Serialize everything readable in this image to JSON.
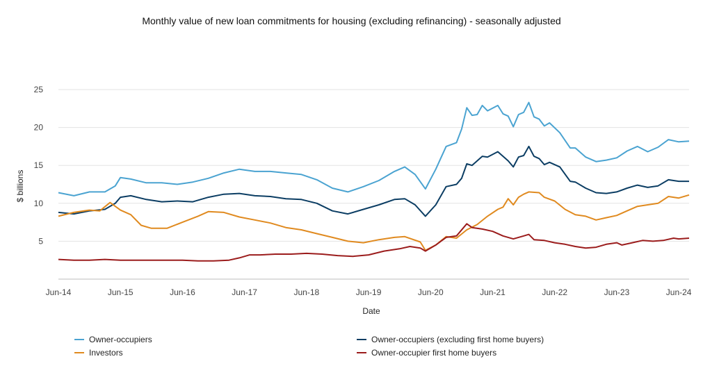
{
  "chart_data": {
    "type": "line",
    "title": "Monthly value of new loan commitments for housing (excluding refinancing) - seasonally adjusted",
    "xlabel": "Date",
    "ylabel": "$ billions",
    "ylim": [
      0,
      25
    ],
    "yticks": [
      5,
      10,
      15,
      20,
      25
    ],
    "x_ticks": [
      "Jun-14",
      "Jun-15",
      "Jun-16",
      "Jun-17",
      "Jun-18",
      "Jun-19",
      "Jun-20",
      "Jun-21",
      "Jun-22",
      "Jun-23",
      "Jun-24"
    ],
    "x_start": "2014-06",
    "x_end": "2024-08",
    "grid": "horizontal",
    "legend_position": "bottom",
    "series": [
      {
        "name": "Owner-occupiers",
        "color": "#4aa3d1",
        "points": [
          [
            "2014-06",
            11.4
          ],
          [
            "2014-09",
            11.0
          ],
          [
            "2014-12",
            11.5
          ],
          [
            "2015-03",
            11.5
          ],
          [
            "2015-05",
            12.3
          ],
          [
            "2015-06",
            13.4
          ],
          [
            "2015-08",
            13.2
          ],
          [
            "2015-11",
            12.7
          ],
          [
            "2016-02",
            12.7
          ],
          [
            "2016-05",
            12.5
          ],
          [
            "2016-08",
            12.8
          ],
          [
            "2016-11",
            13.3
          ],
          [
            "2017-02",
            14.0
          ],
          [
            "2017-05",
            14.5
          ],
          [
            "2017-08",
            14.2
          ],
          [
            "2017-11",
            14.2
          ],
          [
            "2018-02",
            14.0
          ],
          [
            "2018-05",
            13.8
          ],
          [
            "2018-08",
            13.1
          ],
          [
            "2018-11",
            12.0
          ],
          [
            "2019-02",
            11.5
          ],
          [
            "2019-05",
            12.2
          ],
          [
            "2019-08",
            13.0
          ],
          [
            "2019-11",
            14.2
          ],
          [
            "2020-01",
            14.8
          ],
          [
            "2020-03",
            13.8
          ],
          [
            "2020-05",
            11.9
          ],
          [
            "2020-07",
            14.5
          ],
          [
            "2020-09",
            17.5
          ],
          [
            "2020-11",
            18.0
          ],
          [
            "2020-12",
            19.8
          ],
          [
            "2021-01",
            22.6
          ],
          [
            "2021-02",
            21.6
          ],
          [
            "2021-03",
            21.7
          ],
          [
            "2021-04",
            22.9
          ],
          [
            "2021-05",
            22.2
          ],
          [
            "2021-07",
            22.9
          ],
          [
            "2021-08",
            21.8
          ],
          [
            "2021-09",
            21.5
          ],
          [
            "2021-10",
            20.1
          ],
          [
            "2021-11",
            21.7
          ],
          [
            "2021-12",
            22.0
          ],
          [
            "2022-01",
            23.3
          ],
          [
            "2022-02",
            21.4
          ],
          [
            "2022-03",
            21.1
          ],
          [
            "2022-04",
            20.2
          ],
          [
            "2022-05",
            20.6
          ],
          [
            "2022-07",
            19.3
          ],
          [
            "2022-09",
            17.3
          ],
          [
            "2022-10",
            17.3
          ],
          [
            "2022-12",
            16.1
          ],
          [
            "2023-02",
            15.5
          ],
          [
            "2023-04",
            15.7
          ],
          [
            "2023-06",
            16.0
          ],
          [
            "2023-08",
            16.9
          ],
          [
            "2023-10",
            17.5
          ],
          [
            "2023-12",
            16.8
          ],
          [
            "2024-02",
            17.4
          ],
          [
            "2024-04",
            18.4
          ],
          [
            "2024-06",
            18.1
          ],
          [
            "2024-08",
            18.2
          ]
        ]
      },
      {
        "name": "Owner-occupiers (excluding first home buyers)",
        "color": "#0b3d63",
        "points": [
          [
            "2014-06",
            8.8
          ],
          [
            "2014-09",
            8.6
          ],
          [
            "2014-12",
            9.0
          ],
          [
            "2015-03",
            9.2
          ],
          [
            "2015-05",
            10.0
          ],
          [
            "2015-06",
            10.8
          ],
          [
            "2015-08",
            11.0
          ],
          [
            "2015-11",
            10.5
          ],
          [
            "2016-02",
            10.2
          ],
          [
            "2016-05",
            10.3
          ],
          [
            "2016-08",
            10.2
          ],
          [
            "2016-11",
            10.8
          ],
          [
            "2017-02",
            11.2
          ],
          [
            "2017-05",
            11.3
          ],
          [
            "2017-08",
            11.0
          ],
          [
            "2017-11",
            10.9
          ],
          [
            "2018-02",
            10.6
          ],
          [
            "2018-05",
            10.5
          ],
          [
            "2018-08",
            10.0
          ],
          [
            "2018-11",
            9.0
          ],
          [
            "2019-02",
            8.6
          ],
          [
            "2019-05",
            9.2
          ],
          [
            "2019-08",
            9.8
          ],
          [
            "2019-11",
            10.5
          ],
          [
            "2020-01",
            10.6
          ],
          [
            "2020-03",
            9.8
          ],
          [
            "2020-05",
            8.3
          ],
          [
            "2020-07",
            9.8
          ],
          [
            "2020-09",
            12.2
          ],
          [
            "2020-11",
            12.5
          ],
          [
            "2020-12",
            13.3
          ],
          [
            "2021-01",
            15.2
          ],
          [
            "2021-02",
            15.0
          ],
          [
            "2021-04",
            16.2
          ],
          [
            "2021-05",
            16.1
          ],
          [
            "2021-07",
            16.8
          ],
          [
            "2021-09",
            15.6
          ],
          [
            "2021-10",
            14.8
          ],
          [
            "2021-11",
            16.1
          ],
          [
            "2021-12",
            16.3
          ],
          [
            "2022-01",
            17.5
          ],
          [
            "2022-02",
            16.2
          ],
          [
            "2022-03",
            15.9
          ],
          [
            "2022-04",
            15.1
          ],
          [
            "2022-05",
            15.4
          ],
          [
            "2022-07",
            14.8
          ],
          [
            "2022-09",
            12.9
          ],
          [
            "2022-10",
            12.8
          ],
          [
            "2022-12",
            12.0
          ],
          [
            "2023-02",
            11.4
          ],
          [
            "2023-04",
            11.3
          ],
          [
            "2023-06",
            11.5
          ],
          [
            "2023-08",
            12.0
          ],
          [
            "2023-10",
            12.4
          ],
          [
            "2023-12",
            12.1
          ],
          [
            "2024-02",
            12.3
          ],
          [
            "2024-04",
            13.1
          ],
          [
            "2024-06",
            12.9
          ],
          [
            "2024-08",
            12.9
          ]
        ]
      },
      {
        "name": "Investors",
        "color": "#e08a1f",
        "points": [
          [
            "2014-06",
            8.3
          ],
          [
            "2014-09",
            8.8
          ],
          [
            "2014-12",
            9.1
          ],
          [
            "2015-02",
            9.0
          ],
          [
            "2015-04",
            10.1
          ],
          [
            "2015-06",
            9.1
          ],
          [
            "2015-08",
            8.5
          ],
          [
            "2015-10",
            7.1
          ],
          [
            "2015-12",
            6.7
          ],
          [
            "2016-03",
            6.7
          ],
          [
            "2016-06",
            7.5
          ],
          [
            "2016-09",
            8.3
          ],
          [
            "2016-11",
            8.9
          ],
          [
            "2017-02",
            8.8
          ],
          [
            "2017-05",
            8.2
          ],
          [
            "2017-08",
            7.8
          ],
          [
            "2017-11",
            7.4
          ],
          [
            "2018-02",
            6.8
          ],
          [
            "2018-05",
            6.5
          ],
          [
            "2018-08",
            6.0
          ],
          [
            "2018-11",
            5.5
          ],
          [
            "2019-02",
            5.0
          ],
          [
            "2019-05",
            4.8
          ],
          [
            "2019-08",
            5.2
          ],
          [
            "2019-11",
            5.5
          ],
          [
            "2020-01",
            5.6
          ],
          [
            "2020-04",
            4.9
          ],
          [
            "2020-05",
            3.8
          ],
          [
            "2020-07",
            4.5
          ],
          [
            "2020-09",
            5.6
          ],
          [
            "2020-11",
            5.4
          ],
          [
            "2021-01",
            6.5
          ],
          [
            "2021-03",
            7.2
          ],
          [
            "2021-05",
            8.3
          ],
          [
            "2021-07",
            9.2
          ],
          [
            "2021-08",
            9.5
          ],
          [
            "2021-09",
            10.6
          ],
          [
            "2021-10",
            9.8
          ],
          [
            "2021-11",
            10.8
          ],
          [
            "2021-12",
            11.2
          ],
          [
            "2022-01",
            11.5
          ],
          [
            "2022-03",
            11.4
          ],
          [
            "2022-04",
            10.8
          ],
          [
            "2022-06",
            10.3
          ],
          [
            "2022-08",
            9.2
          ],
          [
            "2022-10",
            8.5
          ],
          [
            "2022-12",
            8.3
          ],
          [
            "2023-02",
            7.8
          ],
          [
            "2023-04",
            8.1
          ],
          [
            "2023-06",
            8.4
          ],
          [
            "2023-08",
            9.0
          ],
          [
            "2023-10",
            9.6
          ],
          [
            "2023-12",
            9.8
          ],
          [
            "2024-02",
            10.0
          ],
          [
            "2024-04",
            10.9
          ],
          [
            "2024-06",
            10.7
          ],
          [
            "2024-08",
            11.1
          ]
        ]
      },
      {
        "name": "Owner-occupier first home buyers",
        "color": "#9b1c1c",
        "points": [
          [
            "2014-06",
            2.6
          ],
          [
            "2014-09",
            2.5
          ],
          [
            "2014-12",
            2.5
          ],
          [
            "2015-03",
            2.6
          ],
          [
            "2015-06",
            2.5
          ],
          [
            "2015-09",
            2.5
          ],
          [
            "2015-12",
            2.5
          ],
          [
            "2016-03",
            2.5
          ],
          [
            "2016-06",
            2.5
          ],
          [
            "2016-09",
            2.4
          ],
          [
            "2016-12",
            2.4
          ],
          [
            "2017-03",
            2.5
          ],
          [
            "2017-05",
            2.8
          ],
          [
            "2017-07",
            3.2
          ],
          [
            "2017-09",
            3.2
          ],
          [
            "2017-12",
            3.3
          ],
          [
            "2018-03",
            3.3
          ],
          [
            "2018-06",
            3.4
          ],
          [
            "2018-09",
            3.3
          ],
          [
            "2018-12",
            3.1
          ],
          [
            "2019-03",
            3.0
          ],
          [
            "2019-06",
            3.2
          ],
          [
            "2019-09",
            3.7
          ],
          [
            "2019-12",
            4.0
          ],
          [
            "2020-02",
            4.3
          ],
          [
            "2020-04",
            4.1
          ],
          [
            "2020-05",
            3.7
          ],
          [
            "2020-07",
            4.5
          ],
          [
            "2020-09",
            5.5
          ],
          [
            "2020-11",
            5.7
          ],
          [
            "2021-01",
            7.3
          ],
          [
            "2021-02",
            6.8
          ],
          [
            "2021-04",
            6.6
          ],
          [
            "2021-06",
            6.3
          ],
          [
            "2021-08",
            5.7
          ],
          [
            "2021-10",
            5.3
          ],
          [
            "2021-12",
            5.7
          ],
          [
            "2022-01",
            5.9
          ],
          [
            "2022-02",
            5.2
          ],
          [
            "2022-04",
            5.1
          ],
          [
            "2022-06",
            4.8
          ],
          [
            "2022-08",
            4.6
          ],
          [
            "2022-10",
            4.3
          ],
          [
            "2022-12",
            4.1
          ],
          [
            "2023-02",
            4.2
          ],
          [
            "2023-04",
            4.6
          ],
          [
            "2023-06",
            4.8
          ],
          [
            "2023-07",
            4.5
          ],
          [
            "2023-09",
            4.8
          ],
          [
            "2023-11",
            5.1
          ],
          [
            "2024-01",
            5.0
          ],
          [
            "2024-03",
            5.1
          ],
          [
            "2024-05",
            5.4
          ],
          [
            "2024-06",
            5.3
          ],
          [
            "2024-08",
            5.4
          ]
        ]
      }
    ]
  }
}
